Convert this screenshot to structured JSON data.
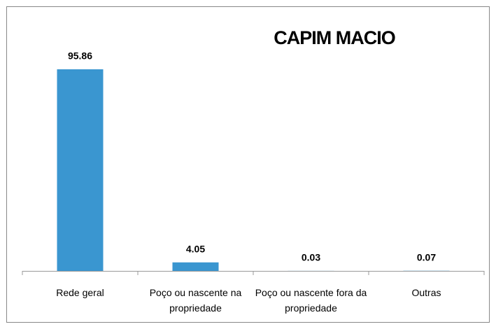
{
  "chart_data": {
    "type": "bar",
    "title": "CAPIM MACIO",
    "categories": [
      "Rede geral",
      "Poço ou nascente na propriedade",
      "Poço ou nascente fora da propriedade",
      "Outras"
    ],
    "values": [
      95.86,
      4.05,
      0.03,
      0.07
    ],
    "color": "#3a96d0"
  }
}
